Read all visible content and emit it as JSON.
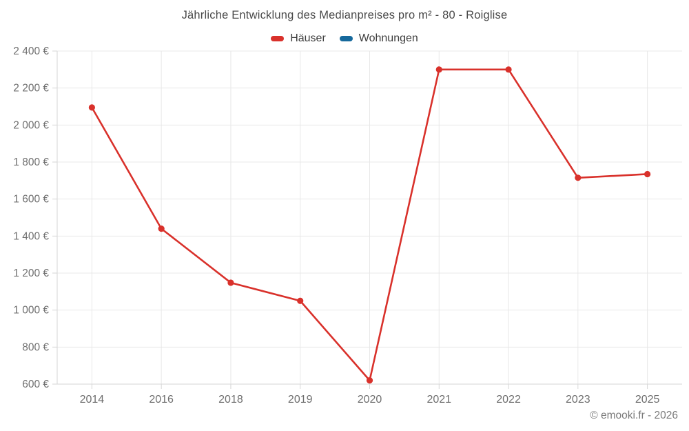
{
  "header": {
    "title": "Jährliche Entwicklung des Medianpreises pro m² - 80 - Roiglise"
  },
  "legend": {
    "items": [
      {
        "label": "Häuser",
        "color": "#d9312b"
      },
      {
        "label": "Wohnungen",
        "color": "#16699c"
      }
    ]
  },
  "footer": {
    "credit": "© emooki.fr - 2026"
  },
  "colors": {
    "grid": "#e8e8e8",
    "axis": "#d6d6d6",
    "tick_label": "#6f6f6f"
  },
  "chart_data": {
    "type": "line",
    "title": "Jährliche Entwicklung des Medianpreises pro m² - 80 - Roiglise",
    "categories": [
      "2014",
      "2016",
      "2018",
      "2019",
      "2020",
      "2021",
      "2022",
      "2023",
      "2025"
    ],
    "series": [
      {
        "name": "Häuser",
        "color": "#d9312b",
        "values": [
          2095,
          1440,
          1148,
          1050,
          620,
          2300,
          2300,
          1715,
          1735
        ]
      },
      {
        "name": "Wohnungen",
        "color": "#16699c",
        "values": []
      }
    ],
    "xlabel": "",
    "ylabel": "",
    "ylim": [
      600,
      2400
    ],
    "ytick_step": 200,
    "ytick_suffix": " €",
    "grid": true,
    "legend_position": "top",
    "marker": "circle"
  }
}
